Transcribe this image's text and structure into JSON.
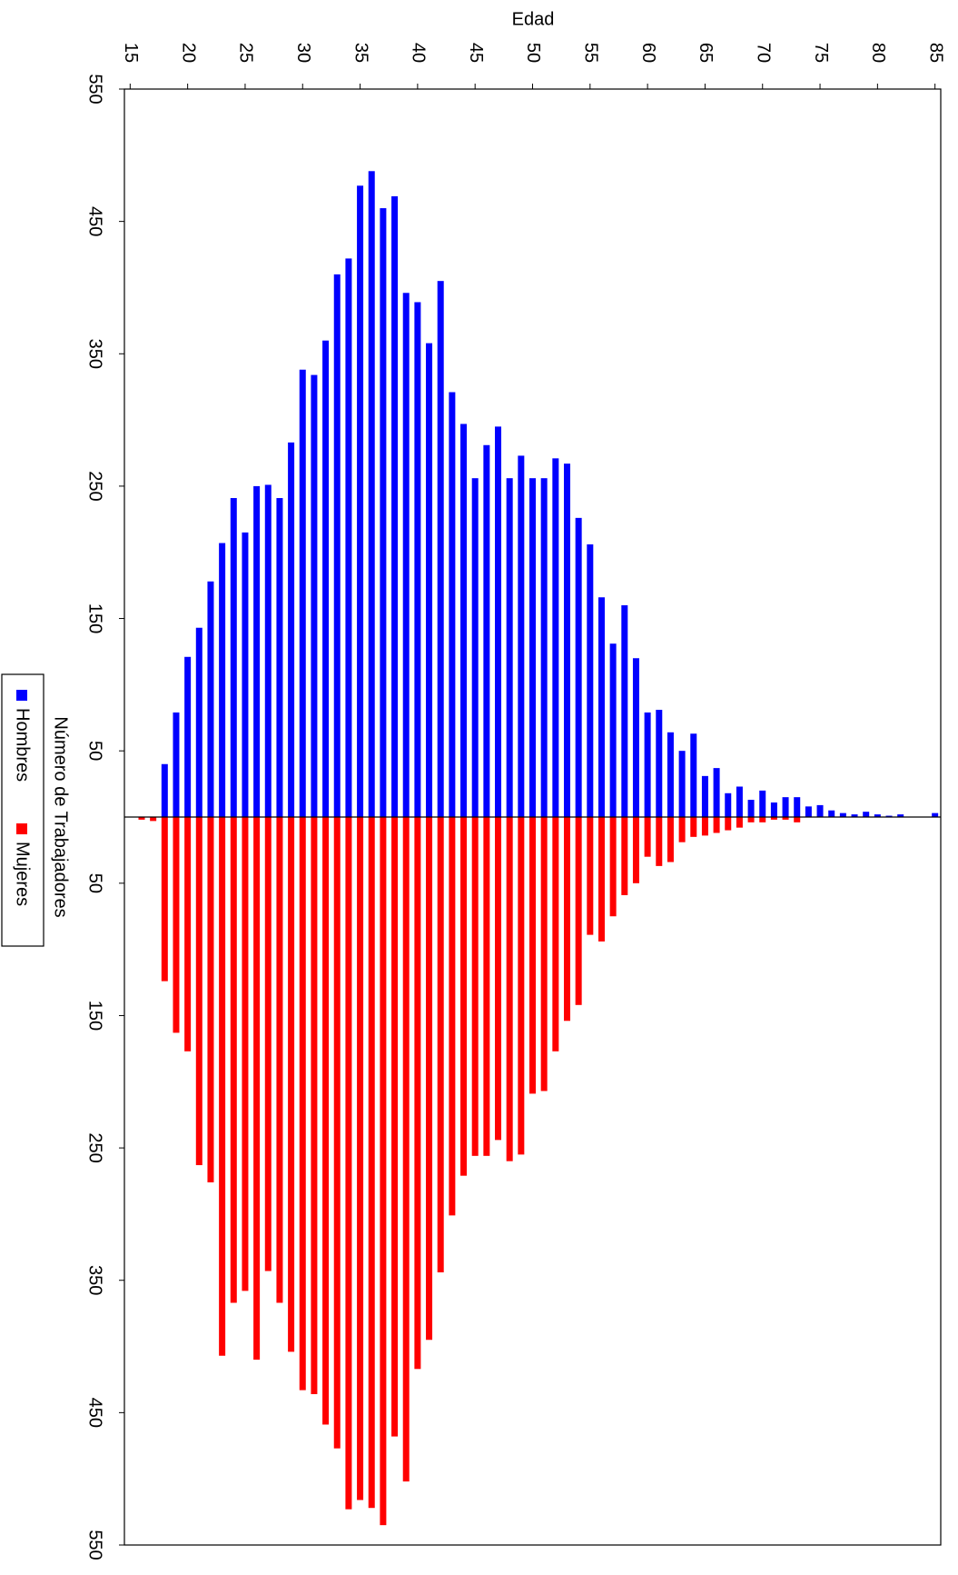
{
  "chart_data": {
    "type": "pyramid",
    "title": null,
    "x_label": "Edad",
    "y_label": "Número de Trabajadores",
    "x": [
      16,
      17,
      18,
      19,
      20,
      21,
      22,
      23,
      24,
      25,
      26,
      27,
      28,
      29,
      30,
      31,
      32,
      33,
      34,
      35,
      36,
      37,
      38,
      39,
      40,
      41,
      42,
      43,
      44,
      45,
      46,
      47,
      48,
      49,
      50,
      51,
      52,
      53,
      54,
      55,
      56,
      57,
      58,
      59,
      60,
      61,
      62,
      63,
      64,
      65,
      66,
      67,
      68,
      69,
      70,
      71,
      72,
      73,
      74,
      75,
      76,
      77,
      78,
      79,
      80,
      81,
      82,
      83,
      84,
      85
    ],
    "series": [
      {
        "name": "Hombres",
        "color": "#0000ff",
        "values": [
          0,
          0,
          40,
          79,
          121,
          143,
          178,
          207,
          241,
          215,
          250,
          251,
          241,
          283,
          338,
          334,
          360,
          410,
          422,
          477,
          488,
          460,
          469,
          396,
          389,
          358,
          405,
          321,
          297,
          256,
          281,
          295,
          256,
          273,
          256,
          256,
          271,
          267,
          226,
          206,
          166,
          131,
          160,
          120,
          79,
          81,
          64,
          50,
          63,
          31,
          37,
          18,
          23,
          13,
          20,
          11,
          15,
          15,
          8,
          9,
          5,
          3,
          2,
          4,
          2,
          1,
          2,
          0,
          0,
          3
        ]
      },
      {
        "name": "Mujeres",
        "color": "#ff0000",
        "values": [
          2,
          3,
          124,
          163,
          177,
          263,
          276,
          407,
          367,
          358,
          410,
          343,
          367,
          404,
          433,
          436,
          459,
          477,
          523,
          516,
          522,
          535,
          468,
          502,
          417,
          395,
          344,
          301,
          271,
          256,
          256,
          244,
          260,
          255,
          209,
          207,
          177,
          154,
          142,
          89,
          94,
          75,
          59,
          50,
          30,
          37,
          34,
          19,
          15,
          14,
          12,
          10,
          8,
          4,
          4,
          2,
          2,
          4,
          0,
          0,
          0,
          0,
          0,
          0,
          0,
          0,
          0,
          0,
          0,
          0
        ]
      }
    ],
    "xlim": [
      14.5,
      85.5
    ],
    "xticks": [
      15,
      20,
      25,
      30,
      35,
      40,
      45,
      50,
      55,
      60,
      65,
      70,
      75,
      80,
      85
    ],
    "ylim": [
      -550,
      550
    ],
    "yticks": [
      550,
      450,
      350,
      250,
      150,
      50,
      {
        "value": -50,
        "label": "50"
      },
      {
        "value": -150,
        "label": "150"
      },
      {
        "value": -250,
        "label": "250"
      },
      {
        "value": -350,
        "label": "350"
      },
      {
        "value": -450,
        "label": "450"
      },
      {
        "value": -550,
        "label": "550"
      }
    ]
  }
}
